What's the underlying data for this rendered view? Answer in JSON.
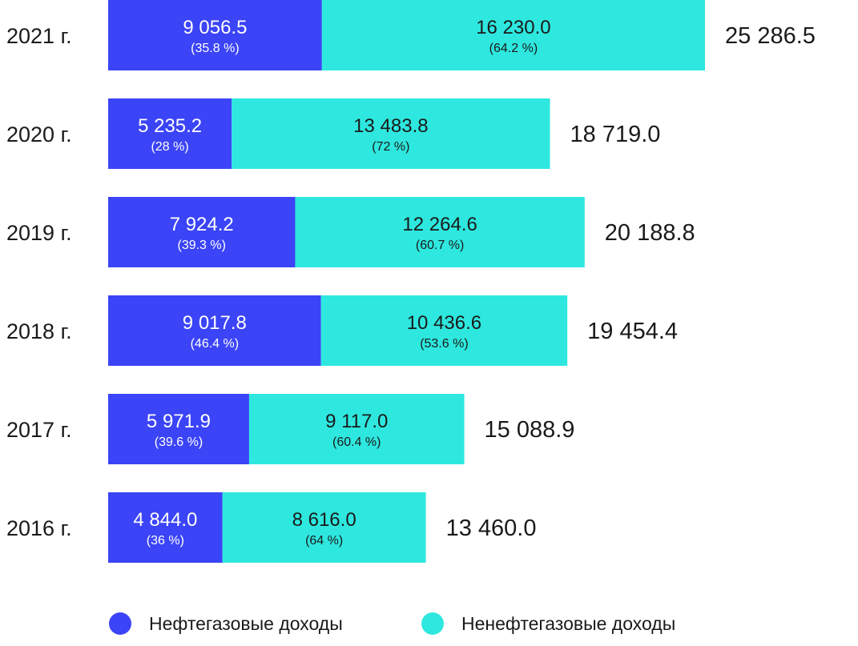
{
  "chart_data": {
    "type": "bar",
    "orientation": "horizontal",
    "stacked": true,
    "categories": [
      "2021 г.",
      "2020 г.",
      "2019 г.",
      "2018 г.",
      "2017 г.",
      "2016 г."
    ],
    "series": [
      {
        "name": "Нефтегазовые доходы",
        "color": "#3b44f6",
        "values": [
          9056.5,
          5235.2,
          7924.2,
          9017.8,
          5971.9,
          4844.0
        ],
        "value_labels": [
          "9 056.5",
          "5 235.2",
          "7 924.2",
          "9 017.8",
          "5 971.9",
          "4 844.0"
        ],
        "pct_labels": [
          "(35.8 %)",
          "(28 %)",
          "(39.3 %)",
          "(46.4 %)",
          "(39.6 %)",
          "(36 %)"
        ]
      },
      {
        "name": "Ненефтегазовые доходы",
        "color": "#2ee8df",
        "values": [
          16230.0,
          13483.8,
          12264.6,
          10436.6,
          9117.0,
          8616.0
        ],
        "value_labels": [
          "16 230.0",
          "13 483.8",
          "12 264.6",
          "10 436.6",
          "9 117.0",
          "8 616.0"
        ],
        "pct_labels": [
          "(64.2 %)",
          "(72 %)",
          "(60.7 %)",
          "(53.6 %)",
          "(60.4 %)",
          "(64 %)"
        ]
      }
    ],
    "totals": [
      25286.5,
      18719.0,
      20188.8,
      19454.4,
      15088.9,
      13460.0
    ],
    "total_labels": [
      "25 286.5",
      "18 719.0",
      "20 188.8",
      "19 454.4",
      "15 088.9",
      "13 460.0"
    ],
    "legend_position": "bottom",
    "grid": false
  }
}
